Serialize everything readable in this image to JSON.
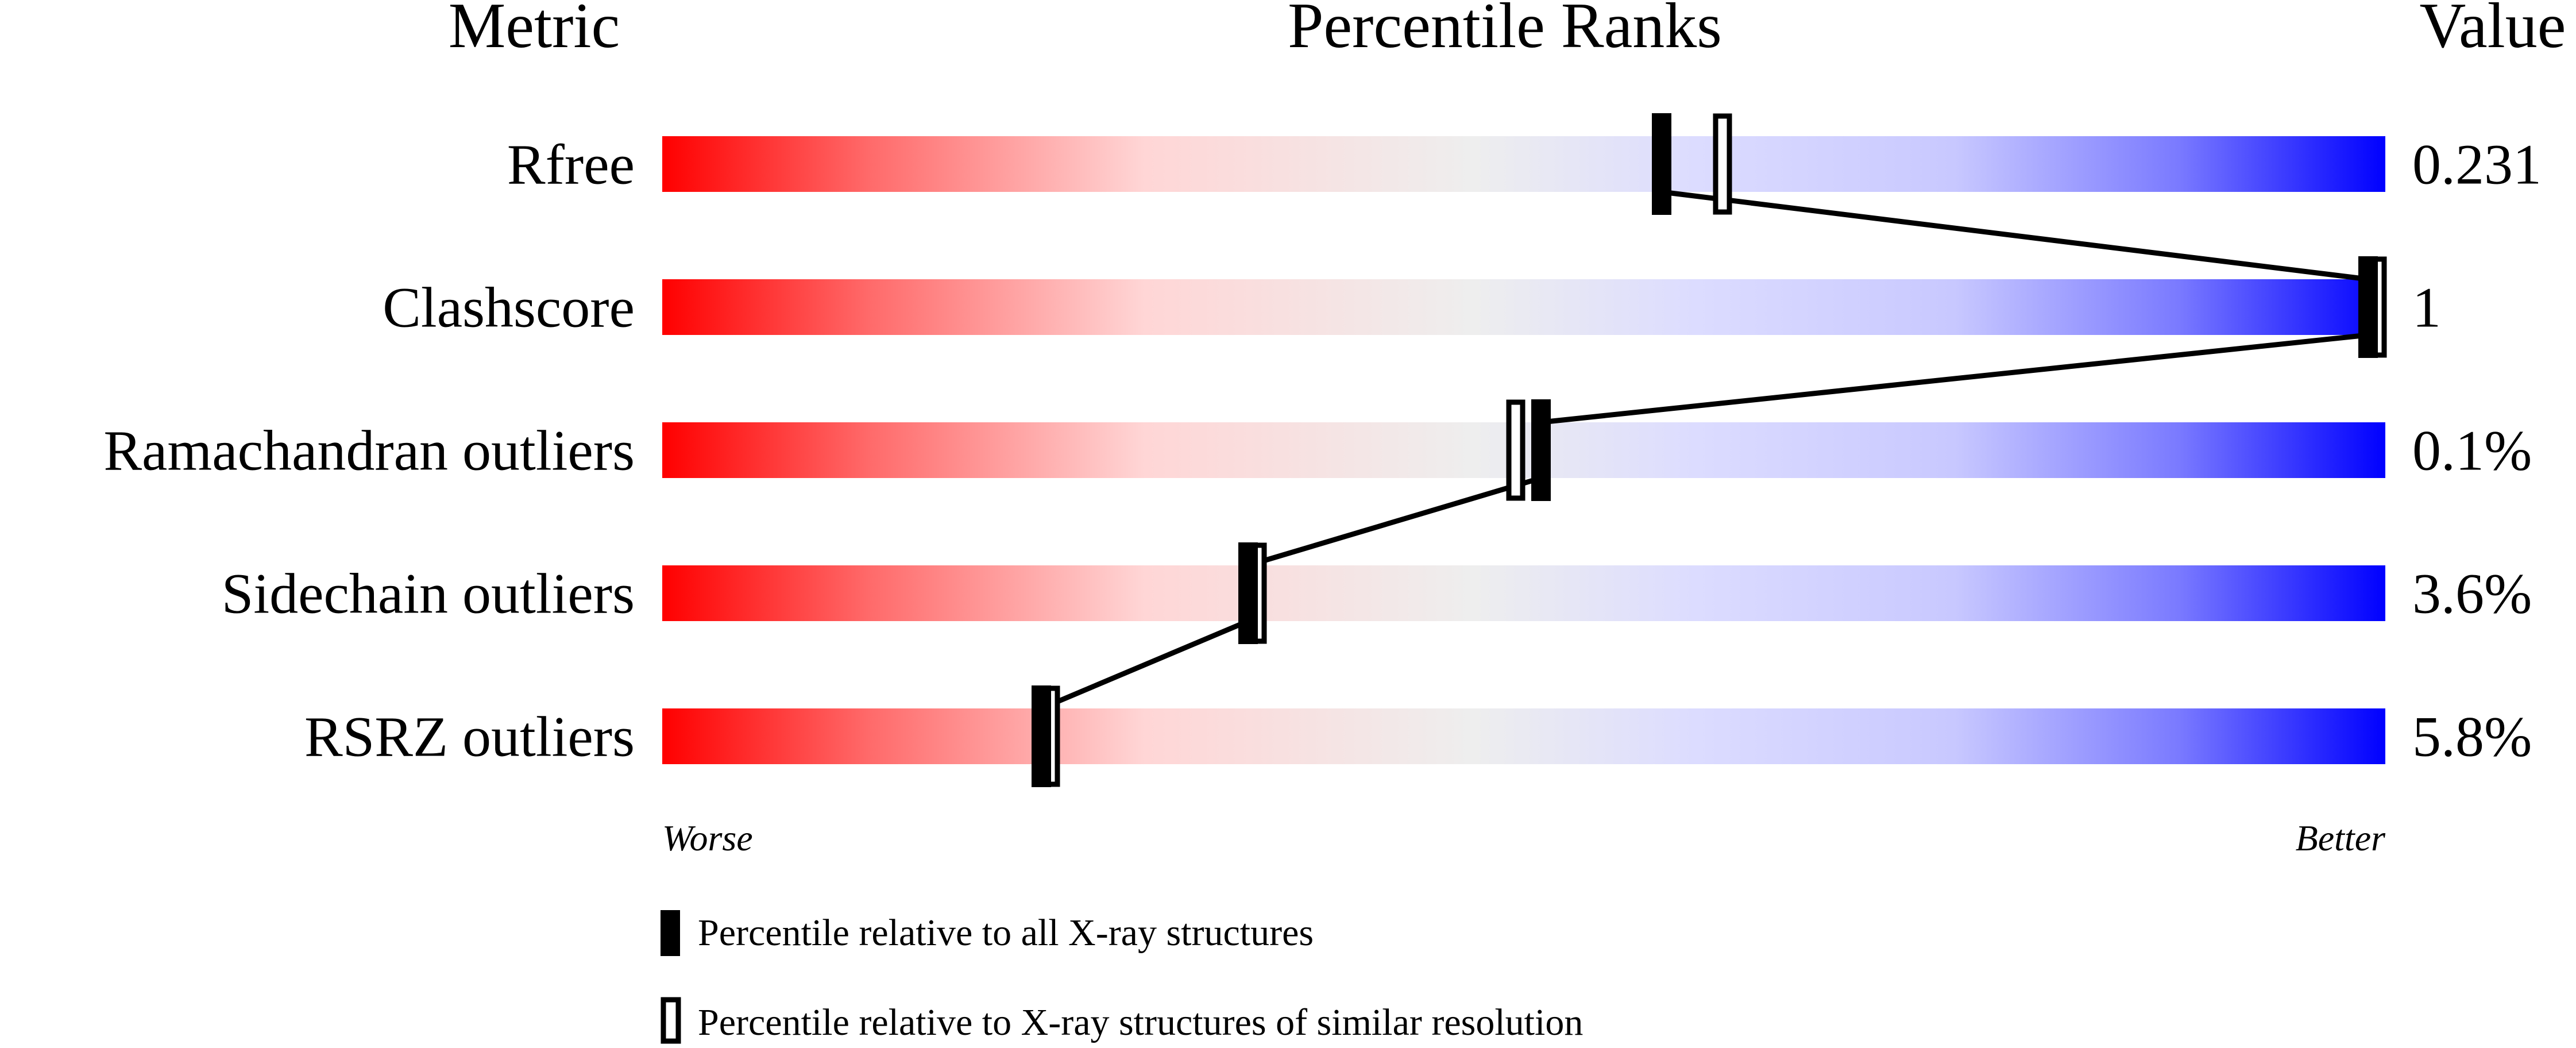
{
  "chart_data": {
    "type": "percentile-ranks",
    "headers": {
      "metric": "Metric",
      "ranks": "Percentile Ranks",
      "value": "Value"
    },
    "rows": [
      {
        "metric": "Rfree",
        "value": "0.231",
        "percentile_all": 58,
        "percentile_similar": 61
      },
      {
        "metric": "Clashscore",
        "value": "1",
        "percentile_all": 99,
        "percentile_similar": 99
      },
      {
        "metric": "Ramachandran outliers",
        "value": "0.1%",
        "percentile_all": 51,
        "percentile_similar": 49
      },
      {
        "metric": "Sidechain outliers",
        "value": "3.6%",
        "percentile_all": 34,
        "percentile_similar": 34
      },
      {
        "metric": "RSRZ outliers",
        "value": "5.8%",
        "percentile_all": 22,
        "percentile_similar": 22
      }
    ],
    "axis": {
      "left_label": "Worse",
      "right_label": "Better",
      "range": [
        0,
        100
      ]
    },
    "legend": {
      "all": "Percentile relative to all X-ray structures",
      "similar": "Percentile relative to X-ray structures of similar resolution"
    },
    "colors": {
      "worse": "#ff0000",
      "mid": "#eeeeee",
      "better": "#0000ff"
    }
  }
}
